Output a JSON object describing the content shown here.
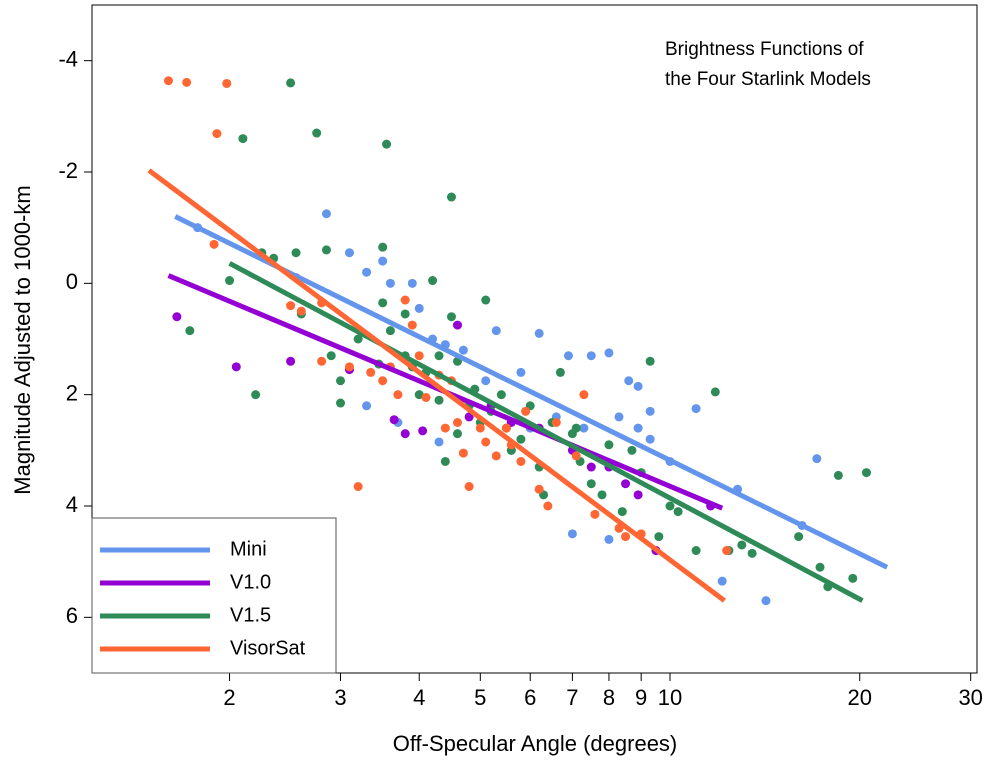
{
  "chart_data": {
    "type": "scatter",
    "annotation": [
      "Brightness Functions of",
      "the Four Starlink Models"
    ],
    "x_label": "Off-Specular Angle (degrees)",
    "y_label": "Magnitude Adjusted to 1000-km",
    "xscale": "log",
    "xlim": [
      1.21,
      30.7
    ],
    "xticks": [
      2,
      3,
      4,
      5,
      6,
      7,
      8,
      9,
      10,
      20,
      30
    ],
    "ylim": [
      -5,
      7
    ],
    "y_inverted": true,
    "yticks": [
      -4,
      -2,
      0,
      2,
      4,
      6
    ],
    "legend": "lower left",
    "series": [
      {
        "name": "Mini",
        "color": "#6495ed",
        "x": [
          1.78,
          2.85,
          3.1,
          3.3,
          3.5,
          3.6,
          3.9,
          4.0,
          4.2,
          4.4,
          4.7,
          5.3,
          5.8,
          6.2,
          6.9,
          7.5,
          8.0,
          8.6,
          8.9,
          9.3,
          10.0,
          11,
          12.1,
          12.8,
          14.2,
          16.2,
          17.1,
          4.3,
          3.3,
          3.7,
          6.6,
          7.0,
          8.0,
          8.3,
          9.3,
          8.9,
          5.6,
          6.0,
          5.1,
          7.3
        ],
        "values": [
          -1.0,
          -1.25,
          -0.55,
          -0.2,
          -0.4,
          0.0,
          0.0,
          0.45,
          1.0,
          1.1,
          1.2,
          0.85,
          1.6,
          0.9,
          1.3,
          1.3,
          1.25,
          1.75,
          1.85,
          2.3,
          3.2,
          2.25,
          5.35,
          3.7,
          5.7,
          4.35,
          3.15,
          2.85,
          2.2,
          2.5,
          2.4,
          4.5,
          4.6,
          2.4,
          2.8,
          2.6,
          3.0,
          2.6,
          1.75,
          2.6
        ],
        "fit_x": [
          1.64,
          22.1
        ],
        "fit_values": [
          -1.2,
          5.1
        ]
      },
      {
        "name": "V1.0",
        "color": "#9400d3",
        "x": [
          1.65,
          2.05,
          2.5,
          2.55,
          3.1,
          3.65,
          3.8,
          4.05,
          4.6,
          4.8,
          5.2,
          5.6,
          6.2,
          7.0,
          7.5,
          8.0,
          8.5,
          8.9,
          9.5,
          11.6
        ],
        "values": [
          0.6,
          1.5,
          1.4,
          -0.1,
          1.55,
          2.45,
          2.7,
          2.65,
          0.75,
          2.4,
          2.2,
          2.5,
          2.6,
          3.0,
          3.3,
          3.3,
          3.6,
          3.8,
          4.8,
          4.0
        ],
        "fit_x": [
          1.6,
          12.1
        ],
        "fit_values": [
          -0.14,
          4.04
        ]
      },
      {
        "name": "V1.5",
        "color": "#2e8b57",
        "x": [
          1.73,
          2.0,
          2.1,
          2.2,
          2.25,
          2.35,
          2.5,
          2.55,
          2.6,
          2.75,
          2.85,
          2.9,
          3.0,
          3.0,
          3.2,
          3.5,
          3.55,
          3.5,
          3.6,
          3.8,
          3.8,
          3.9,
          4.0,
          4.1,
          4.2,
          4.3,
          4.4,
          4.5,
          4.5,
          4.6,
          4.8,
          4.9,
          5.0,
          5.1,
          5.2,
          5.4,
          5.6,
          5.8,
          6.0,
          6.2,
          6.3,
          6.5,
          6.7,
          7.0,
          7.2,
          7.5,
          7.8,
          8.0,
          8.4,
          8.7,
          9.0,
          9.3,
          9.6,
          10.0,
          10.3,
          11.0,
          11.8,
          12.4,
          13.0,
          13.5,
          16.0,
          17.3,
          17.8,
          18.5,
          19.5,
          20.5,
          4.6,
          5.5,
          3.45,
          4.3,
          7.1
        ],
        "values": [
          0.85,
          -0.05,
          -2.6,
          2.0,
          -0.55,
          -0.45,
          -3.6,
          -0.55,
          0.55,
          -2.7,
          -0.6,
          1.3,
          1.75,
          2.15,
          1.0,
          -0.65,
          -2.5,
          0.35,
          0.85,
          1.3,
          0.55,
          1.5,
          2.0,
          1.6,
          -0.05,
          2.1,
          3.2,
          -1.55,
          0.6,
          1.4,
          2.2,
          1.9,
          2.5,
          0.3,
          2.3,
          2.0,
          3.0,
          2.8,
          2.2,
          3.3,
          3.8,
          2.5,
          1.6,
          2.7,
          3.2,
          3.6,
          3.8,
          2.9,
          4.1,
          3.0,
          3.4,
          1.4,
          4.55,
          4.0,
          4.1,
          4.8,
          1.95,
          4.8,
          4.7,
          4.85,
          4.55,
          5.1,
          5.45,
          3.45,
          5.3,
          3.4,
          2.7,
          2.6,
          1.45,
          1.3,
          2.6
        ],
        "fit_x": [
          2.0,
          20.2
        ],
        "fit_values": [
          -0.36,
          5.7
        ]
      },
      {
        "name": "VisorSat",
        "color": "#ff6633",
        "x": [
          1.6,
          1.71,
          1.98,
          1.91,
          1.89,
          2.5,
          2.8,
          3.1,
          3.2,
          3.5,
          3.6,
          3.8,
          3.9,
          3.7,
          4.0,
          4.1,
          4.3,
          4.4,
          4.6,
          4.7,
          4.8,
          5.0,
          5.1,
          5.3,
          5.5,
          5.6,
          5.8,
          6.2,
          6.4,
          6.6,
          7.1,
          7.3,
          7.6,
          8.3,
          8.5,
          9.0,
          12.3,
          3.35,
          4.5,
          5.9,
          2.8,
          2.6
        ],
        "values": [
          -3.64,
          -3.61,
          -3.59,
          -2.69,
          -0.7,
          0.4,
          0.35,
          1.5,
          3.65,
          1.75,
          1.5,
          0.3,
          0.75,
          2.0,
          1.3,
          2.05,
          1.65,
          2.6,
          2.5,
          3.05,
          3.65,
          2.6,
          2.85,
          3.1,
          2.6,
          2.9,
          3.2,
          3.7,
          4.0,
          2.5,
          3.1,
          2.0,
          4.15,
          4.4,
          4.55,
          4.5,
          4.8,
          1.6,
          1.75,
          2.3,
          1.4,
          0.5
        ],
        "fit_x": [
          1.49,
          12.2
        ],
        "fit_values": [
          -2.03,
          5.7
        ]
      }
    ]
  }
}
